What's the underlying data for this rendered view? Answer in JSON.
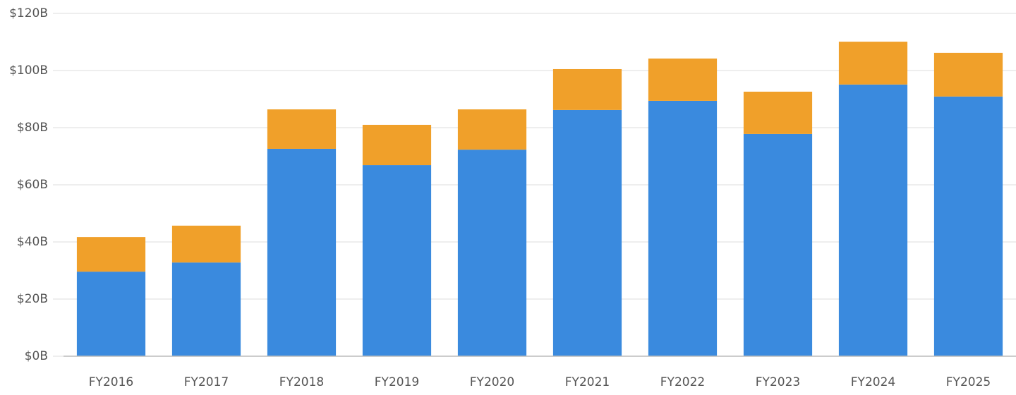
{
  "chart_data": {
    "type": "stacked-bar",
    "categories": [
      "FY2016",
      "FY2017",
      "FY2018",
      "FY2019",
      "FY2020",
      "FY2021",
      "FY2022",
      "FY2023",
      "FY2024",
      "FY2025"
    ],
    "series": [
      {
        "color": "#3a8ade",
        "values": [
          29.6,
          32.8,
          72.6,
          66.9,
          72.3,
          86.2,
          89.4,
          77.8,
          95.1,
          90.9
        ]
      },
      {
        "color": "#f0a02a",
        "values": [
          12.1,
          12.9,
          13.8,
          14.1,
          14.1,
          14.3,
          14.8,
          14.8,
          15.0,
          15.3
        ]
      }
    ],
    "ylim": [
      0,
      120
    ],
    "yticks": [
      {
        "value": 0,
        "label": "$0B"
      },
      {
        "value": 20,
        "label": "$20B"
      },
      {
        "value": 40,
        "label": "$40B"
      },
      {
        "value": 60,
        "label": "$60B"
      },
      {
        "value": 80,
        "label": "$80B"
      },
      {
        "value": 100,
        "label": "$100B"
      },
      {
        "value": 120,
        "label": "$120B"
      }
    ],
    "grid": true
  }
}
